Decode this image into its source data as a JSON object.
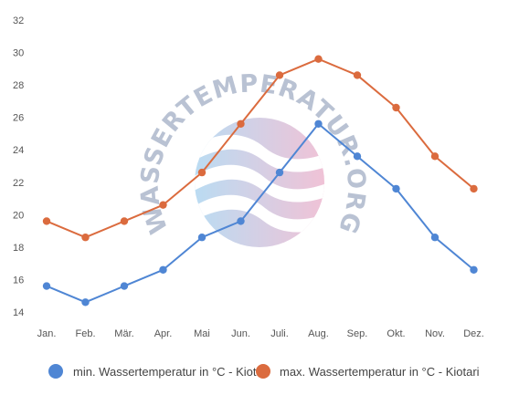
{
  "watermark": {
    "text": "WASSERTEMPERATUR.ORG"
  },
  "colors": {
    "series_min": "#4f86d4",
    "series_max": "#db6b3e",
    "watermark_blue": "#a9d3ef",
    "watermark_pink": "#ecb3cc",
    "tick": "#555555"
  },
  "chart_data": {
    "type": "line",
    "categories": [
      "Jan.",
      "Feb.",
      "Mär.",
      "Apr.",
      "Mai",
      "Jun.",
      "Juli.",
      "Aug.",
      "Sep.",
      "Okt.",
      "Nov.",
      "Dez."
    ],
    "series": [
      {
        "name": "min. Wassertemperatur in °C - Kiotari",
        "color": "#4f86d4",
        "values": [
          15.6,
          14.6,
          15.6,
          16.6,
          18.6,
          19.6,
          22.6,
          25.6,
          23.6,
          21.6,
          18.6,
          16.6
        ]
      },
      {
        "name": "max. Wassertemperatur in °C - Kiotari",
        "color": "#db6b3e",
        "values": [
          19.6,
          18.6,
          19.6,
          20.6,
          22.6,
          25.6,
          28.6,
          29.6,
          28.6,
          26.6,
          23.6,
          21.6
        ]
      }
    ],
    "yticks": [
      14,
      16,
      18,
      20,
      22,
      24,
      26,
      28,
      30,
      32
    ],
    "ylim": [
      14,
      32
    ],
    "grid": false,
    "legend": "bottom"
  }
}
